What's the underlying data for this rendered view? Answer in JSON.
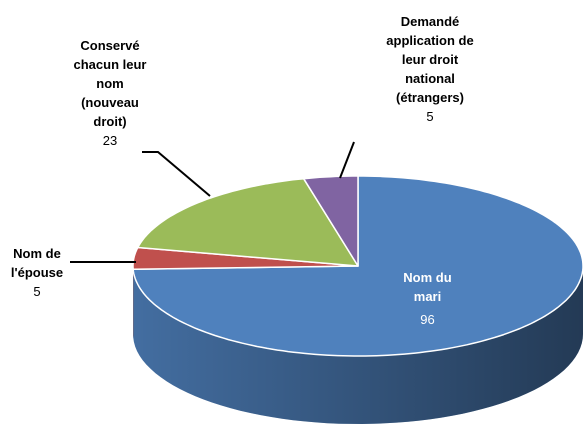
{
  "chart_data": {
    "type": "pie3d",
    "categories": [
      "Nom du mari",
      "Nom de l'épouse",
      "Conservé chacun leur nom (nouveau droit)",
      "Demandé application de leur droit national (étrangers)"
    ],
    "values": [
      96,
      5,
      23,
      5
    ],
    "colors": [
      "#4f81bd",
      "#c0504d",
      "#9bbb59",
      "#8064a2"
    ]
  }
}
